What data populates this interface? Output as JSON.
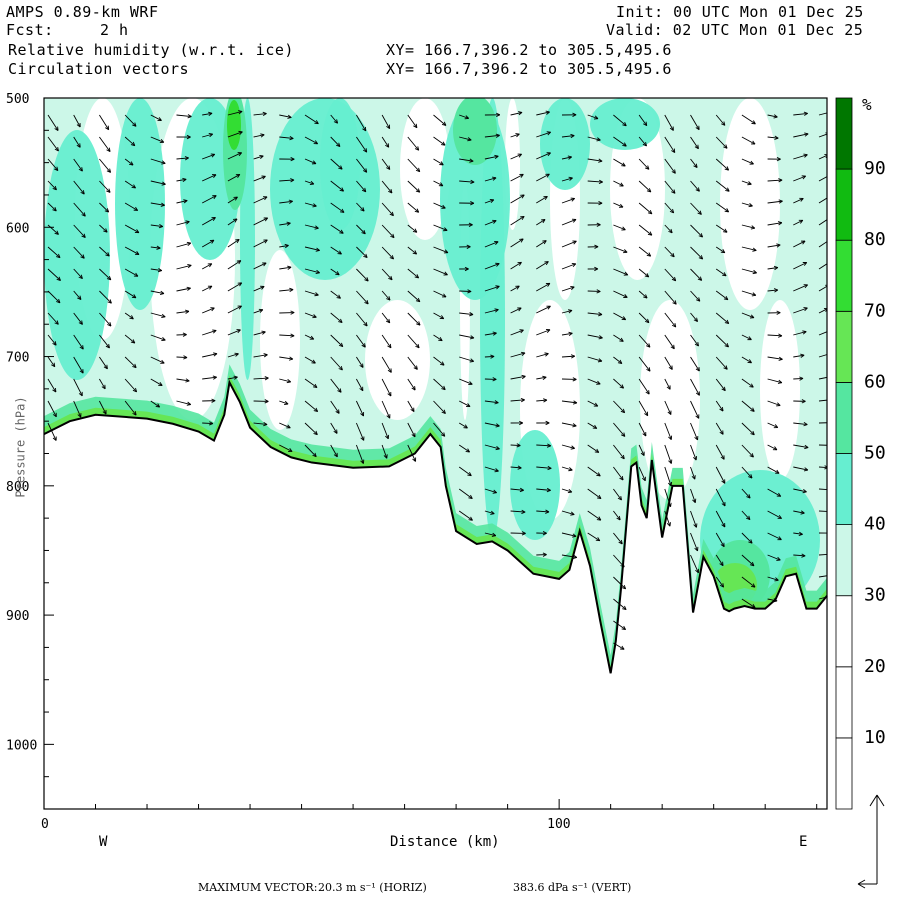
{
  "header": {
    "model": "AMPS 0.89-km WRF",
    "forecast_label": "Fcst:",
    "forecast_value": "2 h",
    "field1": "Relative humidity (w.r.t. ice)",
    "field2": "Circulation vectors",
    "init": "Init: 00 UTC Mon 01 Dec 25",
    "valid": "Valid: 02 UTC Mon 01 Dec 25",
    "xy1": "XY= 166.7,396.2 to 305.5,495.6",
    "xy2": "XY= 166.7,396.2 to 305.5,495.6"
  },
  "footer": {
    "max_vector_label": "MAXIMUM VECTOR:",
    "horiz": "20.3 m s⁻¹ (HORIZ)",
    "vert": "383.6 dPa s⁻¹ (VERT)"
  },
  "colors": {
    "c30": "#ccf7e8",
    "c40": "#66eed0",
    "c50": "#55e6a0",
    "c60": "#66e655",
    "c70": "#33dd33",
    "c80": "#11bb11",
    "c90": "#007700",
    "terrain": "#000000"
  },
  "chart_data": {
    "type": "heatmap",
    "xlabel": "Distance (km)",
    "ylabel": "Pressure (hPa)",
    "xlim": [
      0,
      152
    ],
    "ylim": [
      1050,
      500
    ],
    "x_ticks": [
      0,
      100
    ],
    "y_ticks": [
      500,
      600,
      700,
      800,
      900,
      1000
    ],
    "left_label": "W",
    "right_label": "E",
    "colorbar": {
      "unit": "%",
      "levels": [
        10,
        20,
        30,
        40,
        50,
        60,
        70,
        80,
        90
      ]
    },
    "terrain_surface": {
      "x_km": [
        0,
        5,
        10,
        20,
        25,
        30,
        33,
        35,
        36,
        38,
        40,
        44,
        48,
        52,
        60,
        67,
        72,
        75,
        77,
        78,
        80,
        84,
        87,
        90,
        95,
        100,
        102,
        104,
        106,
        108,
        110,
        111,
        112,
        114,
        115,
        116,
        117,
        118,
        120,
        122,
        124,
        126,
        128,
        130,
        132,
        133,
        134,
        136,
        138,
        140,
        142,
        144,
        146,
        148,
        150,
        152
      ],
      "pressure_hPa": [
        760,
        750,
        745,
        748,
        752,
        758,
        765,
        745,
        720,
        735,
        755,
        770,
        778,
        782,
        786,
        785,
        775,
        760,
        770,
        800,
        835,
        845,
        843,
        850,
        868,
        872,
        865,
        835,
        862,
        905,
        945,
        920,
        880,
        785,
        782,
        815,
        825,
        780,
        840,
        800,
        800,
        898,
        855,
        870,
        895,
        897,
        895,
        893,
        895,
        895,
        888,
        870,
        868,
        895,
        895,
        885
      ]
    },
    "moist_layer_max_hPa": 30
  }
}
